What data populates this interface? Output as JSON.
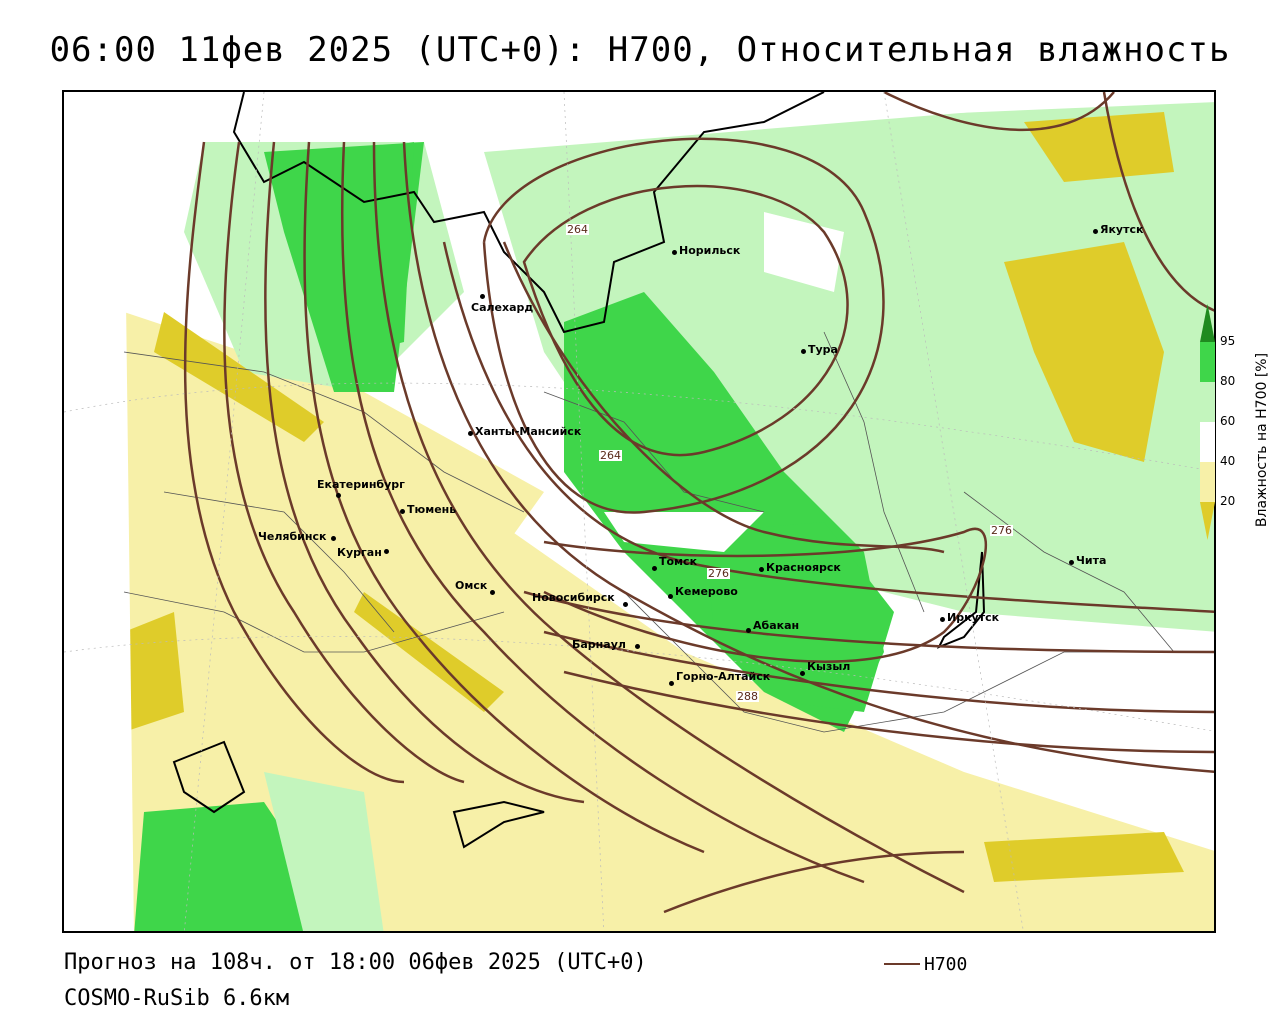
{
  "title": "06:00 11фев 2025 (UTC+0): H700, Относительная влажность",
  "footer": {
    "forecast": "Прогноз на 108ч. от 18:00 06фев 2025 (UTC+0)",
    "model": "COSMO-RuSib 6.6км",
    "legend_line_label": "H700"
  },
  "colorbar": {
    "title": "Влажность на H700 [%]",
    "ticks": [
      "95",
      "80",
      "60",
      "40",
      "20"
    ],
    "colors": {
      "dark_green": "#1f8a1f",
      "green": "#3fd64a",
      "light_green": "#c3f5bd",
      "white": "#ffffff",
      "light_yellow": "#f7f0a8",
      "yellow": "#dfcc2a"
    }
  },
  "map": {
    "contour_color": "#6b3a2a",
    "isoline_labels": [
      "264",
      "264",
      "276",
      "276",
      "288"
    ],
    "cities": [
      {
        "name": "Якутск"
      },
      {
        "name": "Норильск"
      },
      {
        "name": "Салехард"
      },
      {
        "name": "Тура"
      },
      {
        "name": "Ханты-Мансийск"
      },
      {
        "name": "Екатеринбург"
      },
      {
        "name": "Тюмень"
      },
      {
        "name": "Челябинск"
      },
      {
        "name": "Курган"
      },
      {
        "name": "Омск"
      },
      {
        "name": "Новосибирск"
      },
      {
        "name": "Томск"
      },
      {
        "name": "Кемерово"
      },
      {
        "name": "Красноярск"
      },
      {
        "name": "Барнаул"
      },
      {
        "name": "Абакан"
      },
      {
        "name": "Горно-Алтайск"
      },
      {
        "name": "Кызыл"
      },
      {
        "name": "Иркутск"
      },
      {
        "name": "Чита"
      }
    ]
  }
}
